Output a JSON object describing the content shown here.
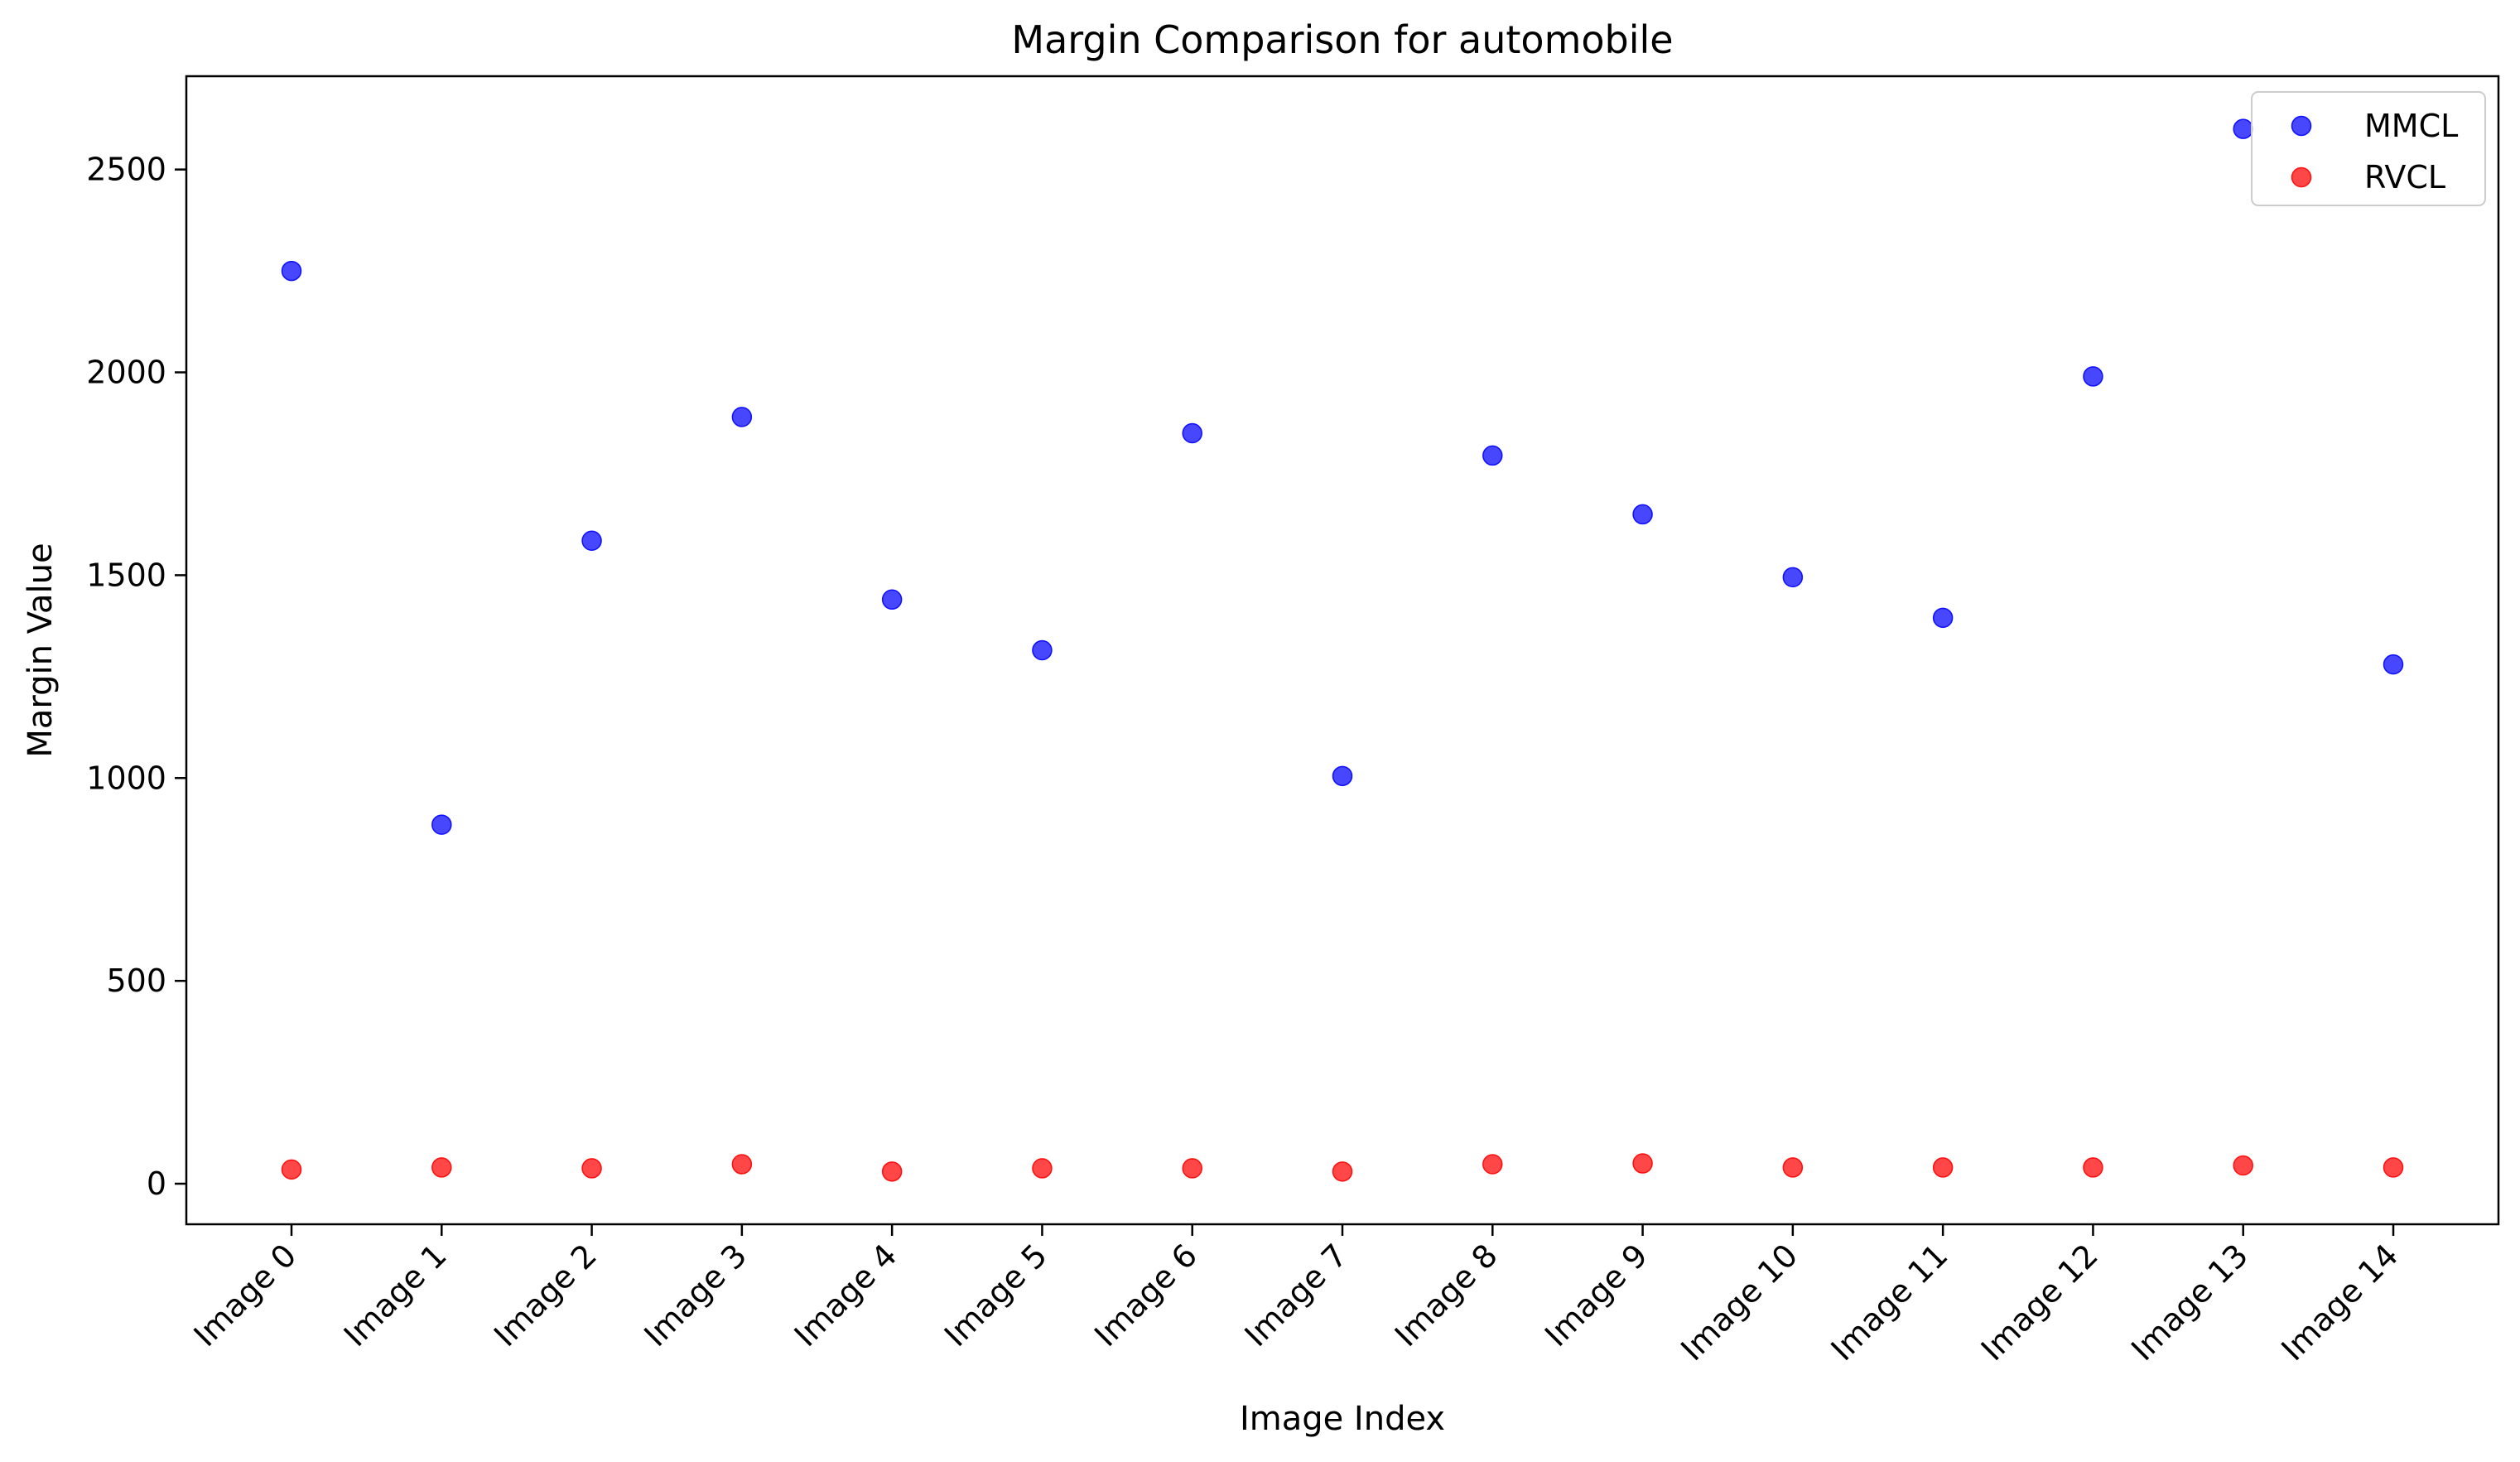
{
  "chart_data": {
    "type": "scatter",
    "title": "Margin Comparison for automobile",
    "xlabel": "Image Index",
    "ylabel": "Margin Value",
    "categories": [
      "Image 0",
      "Image 1",
      "Image 2",
      "Image 3",
      "Image 4",
      "Image 5",
      "Image 6",
      "Image 7",
      "Image 8",
      "Image 9",
      "Image 10",
      "Image 11",
      "Image 12",
      "Image 13",
      "Image 14"
    ],
    "yticks": [
      0,
      500,
      1000,
      1500,
      2000,
      2500
    ],
    "ylim": [
      -100,
      2730
    ],
    "grid": false,
    "legend_position": "top-right",
    "series": [
      {
        "name": "MMCL",
        "color": "#0000ff",
        "values": [
          2250,
          885,
          1585,
          1890,
          1440,
          1315,
          1850,
          1005,
          1795,
          1650,
          1495,
          1395,
          1990,
          2600,
          1280
        ]
      },
      {
        "name": "RVCL",
        "color": "#ff0000",
        "values": [
          35,
          40,
          38,
          48,
          30,
          38,
          38,
          30,
          48,
          50,
          40,
          40,
          40,
          45,
          40
        ]
      }
    ]
  }
}
